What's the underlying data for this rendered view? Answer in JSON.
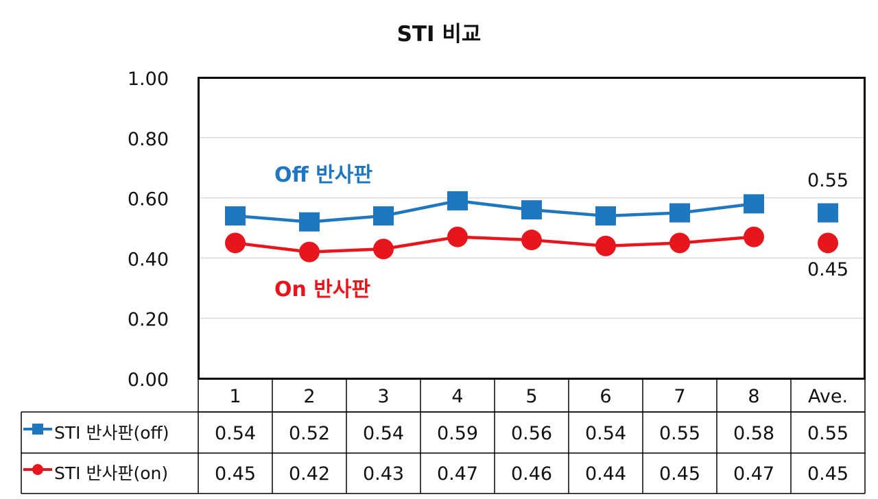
{
  "chart_data": {
    "type": "line",
    "title": "STI 비교",
    "categories": [
      "1",
      "2",
      "3",
      "4",
      "5",
      "6",
      "7",
      "8",
      "Ave."
    ],
    "ylim": [
      0,
      1.0
    ],
    "yticks": [
      "0.00",
      "0.20",
      "0.40",
      "0.60",
      "0.80",
      "1.00"
    ],
    "grid": true,
    "legend_placement": "data table (bottom)",
    "series": [
      {
        "name": "STI 반사판(off)",
        "marker": "square",
        "color": "#1f77c0",
        "values": [
          0.54,
          0.52,
          0.54,
          0.59,
          0.56,
          0.54,
          0.55,
          0.58,
          0.55
        ],
        "labels": [
          "0.54",
          "0.52",
          "0.54",
          "0.59",
          "0.56",
          "0.54",
          "0.55",
          "0.58",
          "0.55"
        ],
        "average_label": "0.55",
        "annotation": "Off 반사판"
      },
      {
        "name": "STI 반사판(on)",
        "marker": "circle",
        "color": "#e8161c",
        "values": [
          0.45,
          0.42,
          0.43,
          0.47,
          0.46,
          0.44,
          0.45,
          0.47,
          0.45
        ],
        "labels": [
          "0.45",
          "0.42",
          "0.43",
          "0.47",
          "0.46",
          "0.44",
          "0.45",
          "0.47",
          "0.45"
        ],
        "average_label": "0.45",
        "annotation": "On 반사판"
      }
    ]
  }
}
